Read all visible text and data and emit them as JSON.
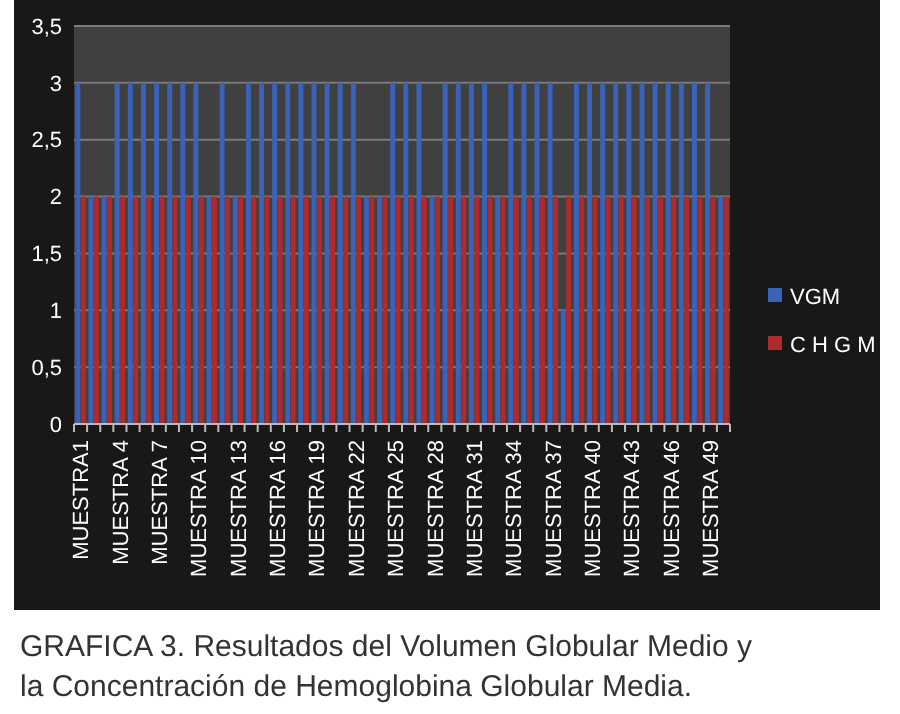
{
  "chart_data": {
    "type": "bar",
    "categories": [
      "MUESTRA1",
      null,
      null,
      "MUESTRA 4",
      null,
      null,
      "MUESTRA 7",
      null,
      null,
      "MUESTRA 10",
      null,
      null,
      "MUESTRA 13",
      null,
      null,
      "MUESTRA 16",
      null,
      null,
      "MUESTRA 19",
      null,
      null,
      "MUESTRA 22",
      null,
      null,
      "MUESTRA 25",
      null,
      null,
      "MUESTRA 28",
      null,
      null,
      "MUESTRA 31",
      null,
      null,
      "MUESTRA 34",
      null,
      null,
      "MUESTRA 37",
      null,
      null,
      "MUESTRA 40",
      null,
      null,
      "MUESTRA 43",
      null,
      null,
      "MUESTRA 46",
      null,
      null,
      "MUESTRA 49",
      null
    ],
    "series": [
      {
        "name": "VGM",
        "color": "#3a62b8",
        "values": [
          3,
          2,
          2,
          3,
          3,
          3,
          3,
          3,
          3,
          3,
          2,
          3,
          2,
          3,
          3,
          3,
          3,
          3,
          3,
          3,
          3,
          3,
          2,
          2,
          3,
          3,
          3,
          2,
          3,
          3,
          3,
          3,
          2,
          3,
          3,
          3,
          3,
          1,
          3,
          3,
          3,
          3,
          3,
          3,
          3,
          3,
          3,
          3,
          3,
          2
        ]
      },
      {
        "name": "C H G M",
        "color": "#b02a2a",
        "values": [
          2,
          2,
          2,
          2,
          2,
          2,
          2,
          2,
          2,
          2,
          2,
          2,
          2,
          2,
          2,
          2,
          2,
          2,
          2,
          2,
          2,
          2,
          2,
          2,
          2,
          2,
          2,
          2,
          2,
          2,
          2,
          2,
          2,
          2,
          2,
          2,
          2,
          2,
          2,
          2,
          2,
          2,
          2,
          2,
          2,
          2,
          2,
          2,
          2,
          2
        ]
      }
    ],
    "ylim": [
      0,
      3.5
    ],
    "yticks": [
      0,
      {
        "value": 0.5,
        "label": "0,5"
      },
      1,
      {
        "value": 1.5,
        "label": "1,5"
      },
      2,
      {
        "value": 2.5,
        "label": "2,5"
      },
      3,
      {
        "value": 3.5,
        "label": "3,5"
      }
    ],
    "grid": "y",
    "legend": "right",
    "annotations": [
      "GRAFICA 3. Resultados del Volumen Globular Medio y la Concentración de Hemoglobina Globular Media."
    ]
  }
}
